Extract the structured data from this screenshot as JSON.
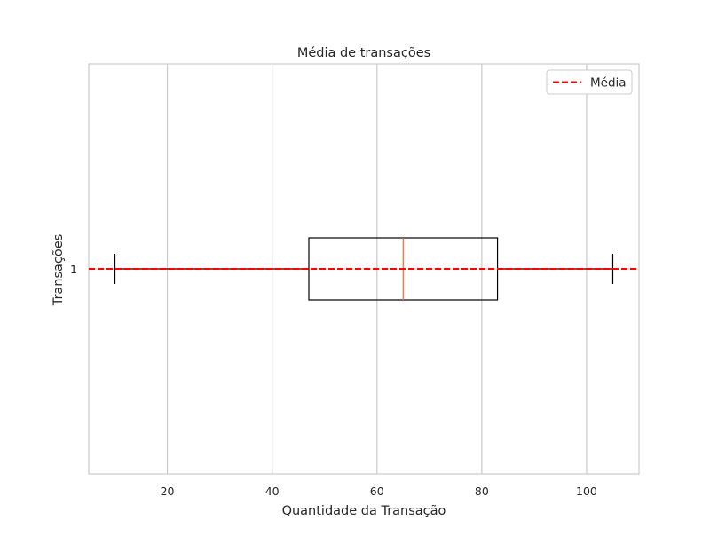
{
  "chart_data": {
    "type": "boxplot",
    "title": "Média de transações",
    "xlabel": "Quantidade da Transação",
    "ylabel": "Transações",
    "orientation": "horizontal",
    "xlim": [
      5,
      110
    ],
    "xticks": [
      20,
      40,
      60,
      80,
      100
    ],
    "grid": "vertical",
    "categories": [
      "1"
    ],
    "boxes": [
      {
        "category": "1",
        "whisker_low": 10,
        "q1": 47,
        "median": 65,
        "q3": 83,
        "whisker_high": 105
      }
    ],
    "mean_line": {
      "label": "Média",
      "y_category": "1",
      "style": "dashed",
      "color": "#ff0000"
    },
    "legend": {
      "position": "top-right",
      "entries": [
        "Média"
      ]
    },
    "colors": {
      "box": "#000000",
      "median": "#e07050",
      "grid": "#cccccc",
      "frame": "#cccccc"
    }
  }
}
